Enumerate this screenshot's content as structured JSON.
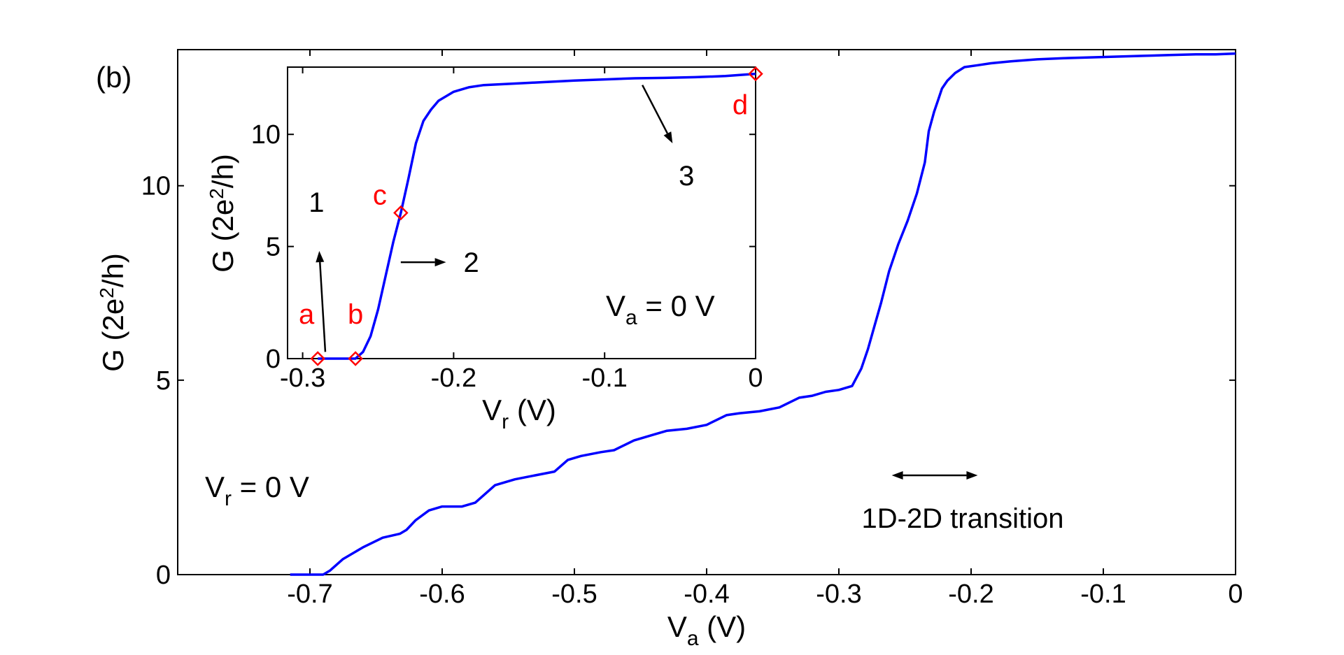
{
  "chart_data": [
    {
      "id": "main",
      "type": "line",
      "panel_label": "(b)",
      "xlabel": {
        "main": "V",
        "sub": "a",
        "unit": " (V)"
      },
      "ylabel": {
        "main": "G (2e",
        "sup": "2",
        "unit": "/h)"
      },
      "xlim": [
        -0.8,
        0
      ],
      "ylim": [
        0,
        13.5
      ],
      "xticks": [
        {
          "v": -0.7,
          "label": "-0.7"
        },
        {
          "v": -0.6,
          "label": "-0.6"
        },
        {
          "v": -0.5,
          "label": "-0.5"
        },
        {
          "v": -0.4,
          "label": "-0.4"
        },
        {
          "v": -0.3,
          "label": "-0.3"
        },
        {
          "v": -0.2,
          "label": "-0.2"
        },
        {
          "v": -0.1,
          "label": "-0.1"
        },
        {
          "v": 0,
          "label": "0"
        }
      ],
      "yticks": [
        {
          "v": 0,
          "label": "0"
        },
        {
          "v": 5,
          "label": "5"
        },
        {
          "v": 10,
          "label": "10"
        }
      ],
      "condition": {
        "main": "V",
        "sub": "r",
        "rest": " = 0 V"
      },
      "annotation": "1D-2D transition",
      "annotation_range": [
        -0.26,
        -0.195
      ],
      "line_color": "#0000ff",
      "series": [
        {
          "x": [
            -0.715,
            -0.69,
            -0.685,
            -0.675,
            -0.66,
            -0.645,
            -0.632,
            -0.627,
            -0.62,
            -0.61,
            -0.6,
            -0.585,
            -0.575,
            -0.56,
            -0.545,
            -0.53,
            -0.515,
            -0.505,
            -0.495,
            -0.48,
            -0.47,
            -0.455,
            -0.44,
            -0.43,
            -0.415,
            -0.4,
            -0.385,
            -0.375,
            -0.36,
            -0.345,
            -0.33,
            -0.32,
            -0.31,
            -0.3,
            -0.29,
            -0.283,
            -0.278,
            -0.273,
            -0.268,
            -0.262,
            -0.255,
            -0.248,
            -0.241,
            -0.235,
            -0.232,
            -0.228,
            -0.225,
            -0.222,
            -0.218,
            -0.215,
            -0.212,
            -0.205,
            -0.195,
            -0.185,
            -0.17,
            -0.15,
            -0.13,
            -0.11,
            -0.09,
            -0.07,
            -0.05,
            -0.03,
            -0.015,
            0
          ],
          "y": [
            0,
            0,
            0.1,
            0.4,
            0.7,
            0.95,
            1.05,
            1.15,
            1.4,
            1.65,
            1.75,
            1.75,
            1.85,
            2.3,
            2.45,
            2.55,
            2.65,
            2.95,
            3.05,
            3.15,
            3.2,
            3.45,
            3.6,
            3.7,
            3.75,
            3.85,
            4.1,
            4.15,
            4.2,
            4.3,
            4.55,
            4.6,
            4.7,
            4.75,
            4.85,
            5.3,
            5.8,
            6.4,
            7.0,
            7.8,
            8.5,
            9.1,
            9.8,
            10.6,
            11.4,
            11.9,
            12.2,
            12.5,
            12.7,
            12.8,
            12.9,
            13.05,
            13.1,
            13.15,
            13.2,
            13.25,
            13.28,
            13.3,
            13.32,
            13.34,
            13.36,
            13.38,
            13.38,
            13.4
          ]
        }
      ]
    },
    {
      "id": "inset",
      "type": "line",
      "xlabel": {
        "main": "V",
        "sub": "r",
        "unit": " (V)"
      },
      "ylabel": {
        "main": "G (2e",
        "sup": "2",
        "unit": "/h)"
      },
      "xlim": [
        -0.31,
        0
      ],
      "ylim": [
        0,
        13
      ],
      "xticks": [
        {
          "v": -0.3,
          "label": "-0.3"
        },
        {
          "v": -0.2,
          "label": "-0.2"
        },
        {
          "v": -0.1,
          "label": "-0.1"
        },
        {
          "v": 0,
          "label": "0"
        }
      ],
      "yticks": [
        {
          "v": 0,
          "label": "0"
        },
        {
          "v": 5,
          "label": "5"
        },
        {
          "v": 10,
          "label": "10"
        }
      ],
      "condition": {
        "main": "V",
        "sub": "a",
        "rest": " = 0 V"
      },
      "line_color": "#0000ff",
      "series": [
        {
          "x": [
            -0.29,
            -0.275,
            -0.265,
            -0.26,
            -0.255,
            -0.25,
            -0.245,
            -0.24,
            -0.235,
            -0.23,
            -0.225,
            -0.22,
            -0.215,
            -0.21,
            -0.2,
            -0.19,
            -0.18,
            -0.15,
            -0.12,
            -0.1,
            -0.08,
            -0.06,
            -0.04,
            -0.02,
            0
          ],
          "y": [
            0,
            0,
            0,
            0.3,
            1.0,
            2.2,
            3.7,
            5.2,
            6.5,
            8.0,
            9.6,
            10.6,
            11.1,
            11.5,
            11.9,
            12.1,
            12.2,
            12.3,
            12.4,
            12.45,
            12.5,
            12.52,
            12.55,
            12.6,
            12.7
          ]
        }
      ],
      "markers": [
        {
          "label": "a",
          "x": -0.29,
          "y": 0
        },
        {
          "label": "b",
          "x": -0.265,
          "y": 0
        },
        {
          "label": "c",
          "x": -0.235,
          "y": 6.5
        },
        {
          "label": "d",
          "x": 0,
          "y": 12.7
        }
      ],
      "arrows": [
        {
          "label": "1",
          "from": [
            -0.285,
            0.3
          ],
          "to": [
            -0.289,
            4.8
          ]
        },
        {
          "label": "2",
          "from": [
            -0.235,
            4.3
          ],
          "to": [
            -0.205,
            4.3
          ]
        },
        {
          "label": "3",
          "from": [
            -0.075,
            12.2
          ],
          "to": [
            -0.055,
            9.6
          ]
        }
      ],
      "marker_color": "#ff0000"
    }
  ]
}
